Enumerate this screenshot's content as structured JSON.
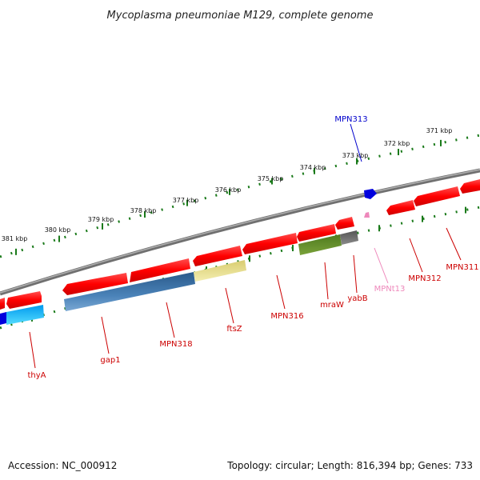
{
  "title": "Mycoplasma pneumoniae M129, complete genome",
  "footer": {
    "accession": "Accession: NC_000912",
    "summary": "Topology: circular; Length: 816,394 bp; Genes: 733"
  },
  "colors": {
    "backbone": "#888888",
    "feature_forward": "#ff0000",
    "ticks": "#1a7a1a",
    "label_red": "#cc0000",
    "label_blue": "#0000cc",
    "label_pink": "#ee88bb"
  },
  "kbp_ticks": [
    {
      "kbp": 381,
      "label": "381 kbp"
    },
    {
      "kbp": 380,
      "label": "380 kbp"
    },
    {
      "kbp": 379,
      "label": "379 kbp"
    },
    {
      "kbp": 378,
      "label": "378 kbp"
    },
    {
      "kbp": 377,
      "label": "377 kbp"
    },
    {
      "kbp": 376,
      "label": "376 kbp"
    },
    {
      "kbp": 375,
      "label": "375 kbp"
    },
    {
      "kbp": 374,
      "label": "374 kbp"
    },
    {
      "kbp": 373,
      "label": "373 kbp"
    },
    {
      "kbp": 372,
      "label": "372 kbp"
    },
    {
      "kbp": 371,
      "label": "371 kbp"
    }
  ],
  "gene_labels": [
    {
      "name": "MPN313",
      "color": "#0000cc"
    },
    {
      "name": "MPN311",
      "color": "#cc0000"
    },
    {
      "name": "MPN312",
      "color": "#cc0000"
    },
    {
      "name": "MPNt13",
      "color": "#ee88bb"
    },
    {
      "name": "yabB",
      "color": "#cc0000"
    },
    {
      "name": "mraW",
      "color": "#cc0000"
    },
    {
      "name": "MPN316",
      "color": "#cc0000"
    },
    {
      "name": "ftsZ",
      "color": "#cc0000"
    },
    {
      "name": "MPN318",
      "color": "#cc0000"
    },
    {
      "name": "gap1",
      "color": "#cc0000"
    },
    {
      "name": "thyA",
      "color": "#cc0000"
    }
  ]
}
